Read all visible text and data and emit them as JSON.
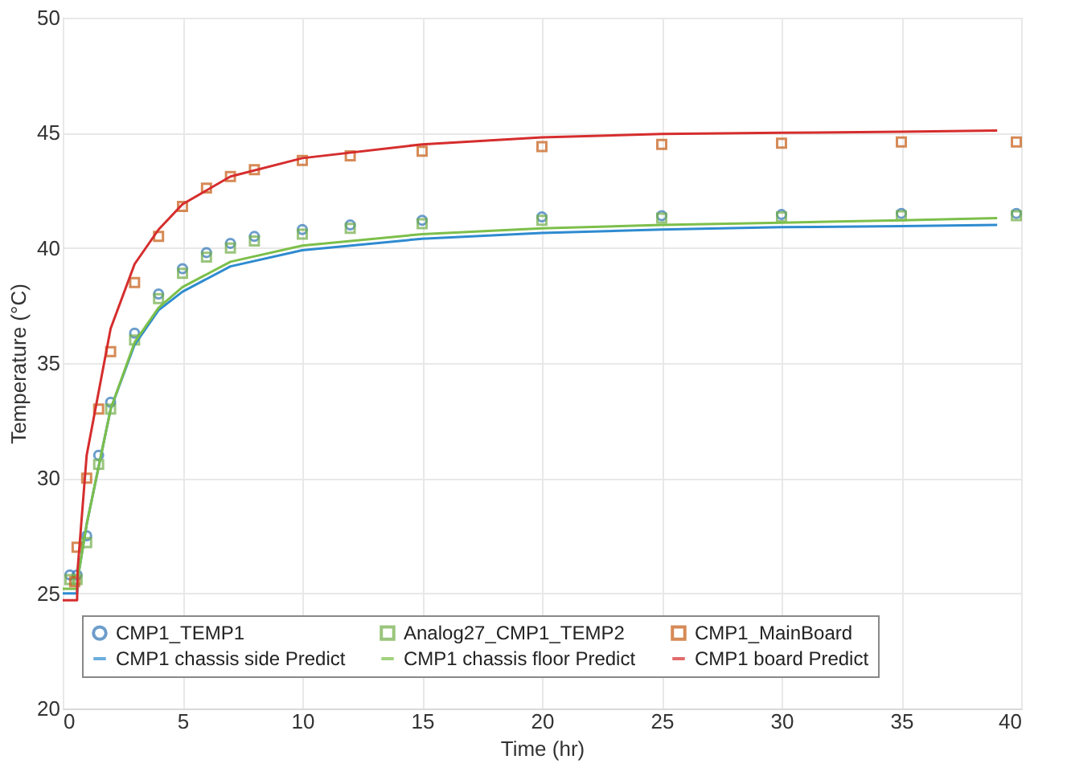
{
  "chart_data": {
    "type": "line",
    "xlabel": "Time (hr)",
    "ylabel": "Temperature (°C)",
    "xlim": [
      0,
      40
    ],
    "xticks": [
      0,
      5,
      10,
      15,
      20,
      25,
      30,
      35,
      40
    ],
    "ylim": [
      20,
      50
    ],
    "yticks": [
      20,
      25,
      30,
      35,
      40,
      45,
      50
    ],
    "grid": true,
    "legend": "bottom",
    "series": [
      {
        "name": "CMP1_TEMP1",
        "type": "scatter",
        "marker": "circle",
        "color": "#2e75b6",
        "x": [
          0.3,
          0.6,
          1,
          1.5,
          2,
          3,
          4,
          5,
          6,
          7,
          8,
          10,
          12,
          15,
          20,
          25,
          30,
          35,
          39.8
        ],
        "values": [
          25.8,
          25.8,
          27.5,
          31,
          33.3,
          36.3,
          38,
          39.1,
          39.8,
          40.2,
          40.5,
          40.8,
          41,
          41.2,
          41.35,
          41.4,
          41.45,
          41.5,
          41.5
        ]
      },
      {
        "name": "Analog27_CMP1_TEMP2",
        "type": "scatter",
        "marker": "square",
        "color": "#70ad47",
        "x": [
          0.3,
          0.6,
          1,
          1.5,
          2,
          3,
          4,
          5,
          6,
          7,
          8,
          10,
          12,
          15,
          20,
          25,
          30,
          35,
          39.8
        ],
        "values": [
          25.6,
          25.6,
          27.2,
          30.6,
          33,
          36,
          37.8,
          38.9,
          39.6,
          40,
          40.3,
          40.6,
          40.85,
          41.05,
          41.2,
          41.3,
          41.35,
          41.4,
          41.4
        ]
      },
      {
        "name": "CMP1_MainBoard",
        "type": "scatter",
        "marker": "square",
        "color": "#c55a11",
        "x": [
          0.5,
          0.6,
          1,
          1.5,
          2,
          3,
          4,
          5,
          6,
          7,
          8,
          10,
          12,
          15,
          20,
          25,
          30,
          35,
          39.8
        ],
        "values": [
          25.5,
          27,
          30,
          33,
          35.5,
          38.5,
          40.5,
          41.8,
          42.6,
          43.1,
          43.4,
          43.8,
          44,
          44.2,
          44.4,
          44.5,
          44.55,
          44.6,
          44.6
        ]
      },
      {
        "name": "CMP1 chassis side Predict",
        "marker": "none",
        "color": "#2e8bd0",
        "x": [
          0,
          0.6,
          0.62,
          1,
          2,
          3,
          4,
          5,
          7,
          10,
          15,
          20,
          25,
          30,
          35,
          39
        ],
        "values": [
          25,
          25,
          25.6,
          28,
          33,
          35.8,
          37.3,
          38.1,
          39.2,
          39.9,
          40.4,
          40.65,
          40.8,
          40.9,
          40.95,
          41
        ]
      },
      {
        "name": "CMP1 chassis floor Predict",
        "marker": "none",
        "color": "#7cbf4a",
        "x": [
          0,
          0.6,
          0.62,
          1,
          2,
          3,
          4,
          5,
          7,
          10,
          15,
          20,
          25,
          30,
          35,
          39
        ],
        "values": [
          25.2,
          25.2,
          25.6,
          28,
          33,
          35.9,
          37.4,
          38.3,
          39.4,
          40.1,
          40.6,
          40.85,
          41,
          41.1,
          41.2,
          41.3
        ]
      },
      {
        "name": "CMP1 board Predict",
        "marker": "none",
        "color": "#d62d2d",
        "x": [
          0,
          0.6,
          0.62,
          1,
          2,
          3,
          4,
          5,
          7,
          10,
          15,
          20,
          25,
          30,
          35,
          39
        ],
        "values": [
          24.7,
          24.7,
          26,
          31,
          36.5,
          39.3,
          40.8,
          41.9,
          43.1,
          43.9,
          44.5,
          44.8,
          44.95,
          45,
          45.05,
          45.1
        ]
      }
    ]
  }
}
